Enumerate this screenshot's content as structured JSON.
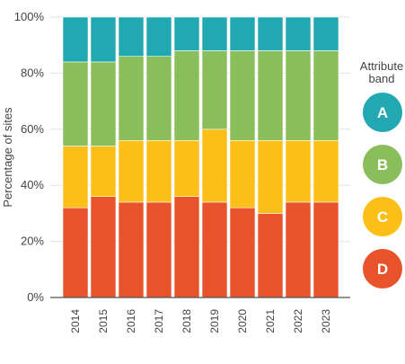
{
  "chart_data": {
    "type": "bar",
    "stacked": true,
    "categories": [
      "2014",
      "2015",
      "2016",
      "2017",
      "2018",
      "2019",
      "2020",
      "2021",
      "2022",
      "2023"
    ],
    "series": [
      {
        "name": "D",
        "color": "#e9532b",
        "values": [
          32,
          36,
          34,
          34,
          36,
          34,
          32,
          30,
          34,
          34
        ]
      },
      {
        "name": "C",
        "color": "#fbbf17",
        "values": [
          22,
          18,
          22,
          22,
          20,
          26,
          24,
          26,
          22,
          22
        ]
      },
      {
        "name": "B",
        "color": "#8abd5c",
        "values": [
          30,
          30,
          30,
          30,
          32,
          28,
          32,
          32,
          32,
          32
        ]
      },
      {
        "name": "A",
        "color": "#22a8b0",
        "values": [
          16,
          16,
          14,
          14,
          12,
          12,
          12,
          12,
          12,
          12
        ]
      }
    ],
    "y_ticks": [
      "0%",
      "20%",
      "40%",
      "60%",
      "80%",
      "100%"
    ],
    "y_tick_values": [
      0,
      20,
      40,
      60,
      80,
      100
    ],
    "ylim": [
      0,
      100
    ],
    "ylabel": "Percentage of sites",
    "xlabel": "",
    "grid": true,
    "legend": {
      "title_line1": "Attribute",
      "title_line2": "band",
      "placement": "right",
      "items": [
        {
          "label": "A",
          "color": "#22a8b0"
        },
        {
          "label": "B",
          "color": "#8abd5c"
        },
        {
          "label": "C",
          "color": "#fbbf17"
        },
        {
          "label": "D",
          "color": "#e9532b"
        }
      ]
    }
  }
}
